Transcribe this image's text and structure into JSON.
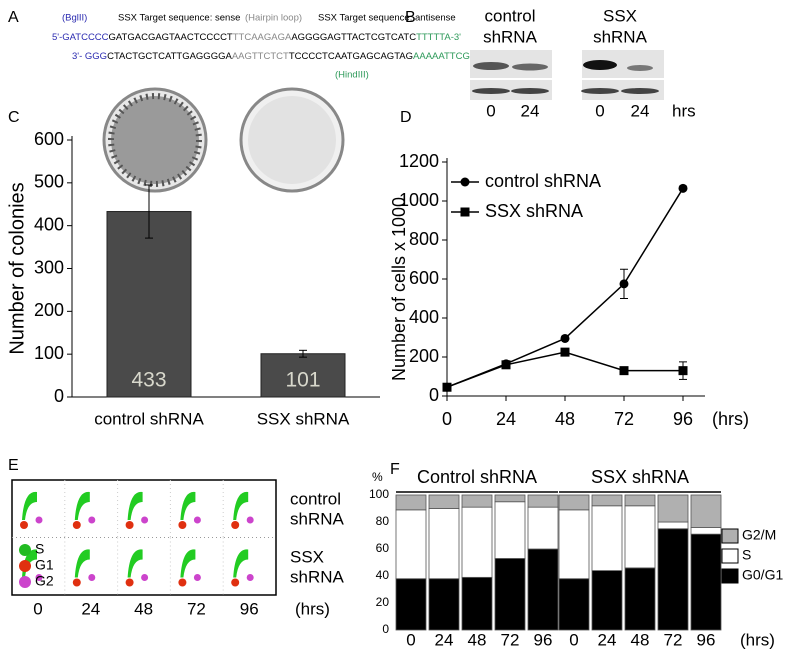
{
  "panel_labels": [
    "A",
    "B",
    "C",
    "D",
    "E",
    "F"
  ],
  "sequence": {
    "bglii": "(BglII)",
    "sense_label": "SSX Target sequence: sense",
    "loop_label": "(Hairpin loop)",
    "antisense_label": "SSX Target sequence: antisense",
    "hindiii": "(HindIII)",
    "top": [
      "5'-GATCCCC",
      "GATGACGAGTAACTCCCCT",
      "TTCAAGAGA",
      "AGGGGAGTTACTCGTCATC",
      "TTTTTA-3'"
    ],
    "bottom": [
      "3'- GGG",
      "CTACTGCTCATTGAGGGGA",
      "AAGTTCTCT",
      "TCCCCTCAATGAGCAGTAG",
      "AAAAATTCGA-5'"
    ]
  },
  "blot": {
    "groups": [
      {
        "name": "control",
        "sub": "shRNA"
      },
      {
        "name": "SSX",
        "sub": "shRNA"
      }
    ],
    "lanes": [
      "0",
      "24",
      "0",
      "24"
    ],
    "unit": "hrs"
  },
  "flow": {
    "rows": [
      [
        "control",
        "shRNA"
      ],
      [
        "SSX",
        "shRNA"
      ]
    ],
    "legend": [
      "S",
      "G1",
      "G2"
    ],
    "times": [
      "0",
      "24",
      "48",
      "72",
      "96"
    ],
    "unit": "(hrs)"
  },
  "chart_data": [
    {
      "type": "bar",
      "categories": [
        "control shRNA",
        "SSX shRNA"
      ],
      "values": [
        433,
        101
      ],
      "errors": [
        62,
        8
      ],
      "color": "#4a4a4a",
      "label_color": "#d8d8cc",
      "ylabel": "Number of colonies",
      "ylim": [
        0,
        600
      ],
      "yticks": [
        0,
        100,
        200,
        300,
        400,
        500,
        600
      ]
    },
    {
      "type": "line",
      "x": [
        0,
        24,
        48,
        72,
        96
      ],
      "series": [
        {
          "name": "control shRNA",
          "color": "#000000",
          "marker": "circle",
          "values": [
            45,
            165,
            295,
            575,
            1065
          ],
          "errors": [
            null,
            null,
            null,
            75,
            null
          ]
        },
        {
          "name": "SSX shRNA",
          "color": "#000000",
          "marker": "square",
          "values": [
            45,
            160,
            225,
            130,
            130
          ],
          "errors": [
            null,
            null,
            null,
            null,
            45
          ]
        }
      ],
      "xlim": [
        0,
        96
      ],
      "xticks": [
        0,
        24,
        48,
        72,
        96
      ],
      "ylim": [
        0,
        1200
      ],
      "yticks": [
        0,
        200,
        400,
        600,
        800,
        1000,
        1200
      ],
      "ylabel": "Number of  cells x 1000",
      "xunit": "(hrs)",
      "legend": "upper left"
    },
    {
      "type": "stacked_bar",
      "groups": [
        "Control shRNA",
        "SSX shRNA"
      ],
      "categories": [
        "0",
        "24",
        "48",
        "72",
        "96",
        "0",
        "24",
        "48",
        "72",
        "96"
      ],
      "series": [
        {
          "name": "G0/G1",
          "color": "#000000",
          "values": [
            38,
            38,
            39,
            53,
            60,
            38,
            44,
            46,
            75,
            71
          ]
        },
        {
          "name": "S",
          "color": "#ffffff",
          "values": [
            51,
            52,
            52,
            42,
            31,
            51,
            48,
            46,
            5,
            5
          ]
        },
        {
          "name": "G2/M",
          "color": "#b0b0b0",
          "values": [
            11,
            10,
            9,
            5,
            9,
            11,
            8,
            8,
            20,
            24
          ]
        }
      ],
      "ylim": [
        0,
        100
      ],
      "yticks": [
        0,
        20,
        40,
        60,
        80,
        100
      ],
      "ylabel": "%",
      "xunit": "(hrs)"
    }
  ]
}
